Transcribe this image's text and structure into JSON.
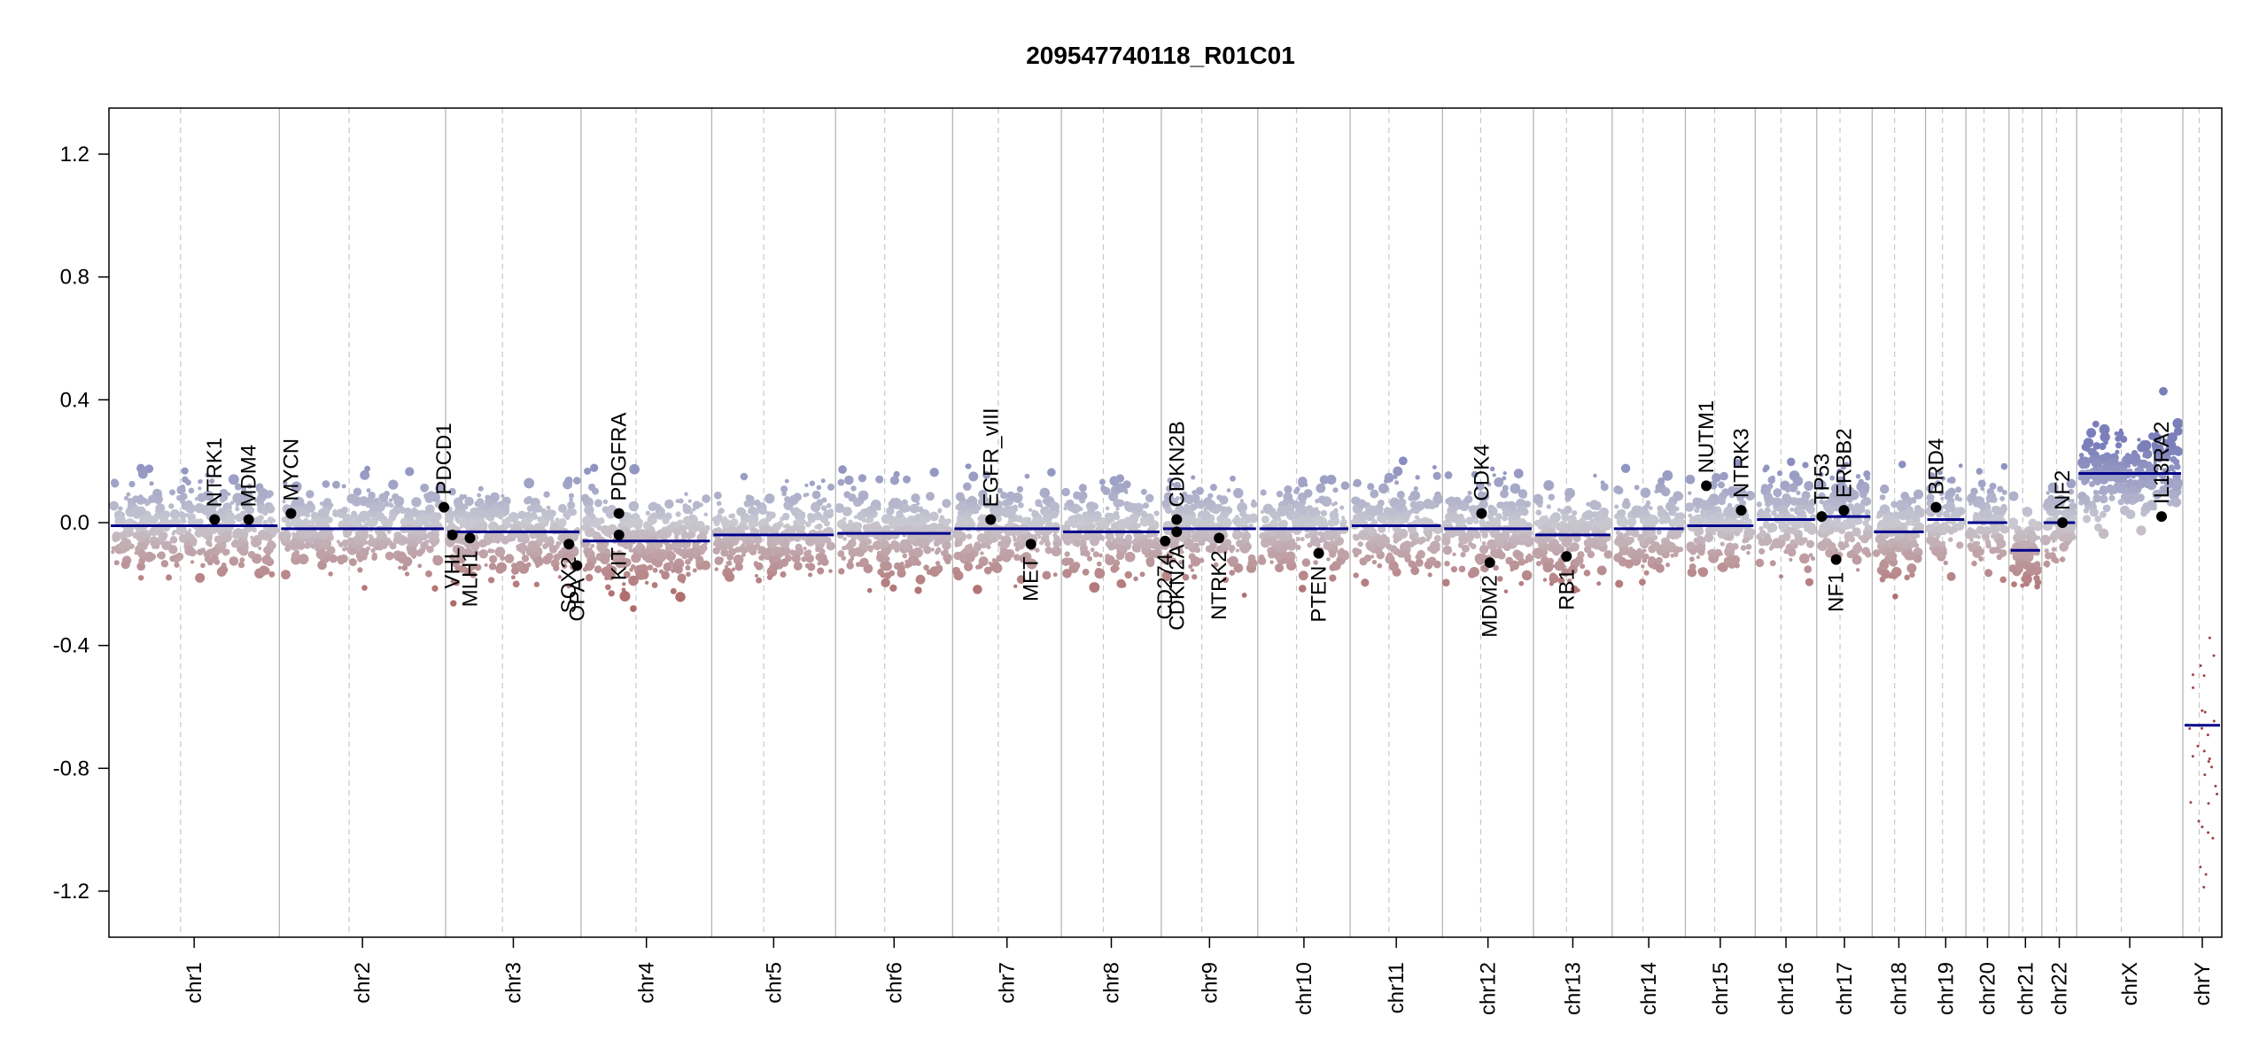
{
  "chart_data": {
    "type": "scatter",
    "title": "209547740118_R01C01",
    "xlabel": "",
    "ylabel": "",
    "ylim": [
      -1.35,
      1.35
    ],
    "y_ticks": [
      -1.2,
      -0.8,
      -0.4,
      0.0,
      0.4,
      0.8,
      1.2
    ],
    "y_tick_labels": [
      "-1.2",
      "-0.8",
      "-0.4",
      "0.0",
      "0.4",
      "0.8",
      "1.2"
    ],
    "colors": {
      "gain": "#7a7fba",
      "neutral": "#c9c9d2",
      "loss": "#b06a6a",
      "segment": "#00008b",
      "gene_dot": "#000000",
      "boundary": "#b0b0b0"
    },
    "chromosomes": [
      {
        "name": "chr1",
        "len": 249,
        "seg": -0.01
      },
      {
        "name": "chr2",
        "len": 243,
        "seg": -0.02
      },
      {
        "name": "chr3",
        "len": 198,
        "seg": -0.03
      },
      {
        "name": "chr4",
        "len": 191,
        "seg": -0.06
      },
      {
        "name": "chr5",
        "len": 181,
        "seg": -0.04
      },
      {
        "name": "chr6",
        "len": 171,
        "seg": -0.035
      },
      {
        "name": "chr7",
        "len": 159,
        "seg": -0.02
      },
      {
        "name": "chr8",
        "len": 146,
        "seg": -0.03
      },
      {
        "name": "chr9",
        "len": 141,
        "seg": -0.02
      },
      {
        "name": "chr10",
        "len": 135,
        "seg": -0.02
      },
      {
        "name": "chr11",
        "len": 135,
        "seg": -0.01
      },
      {
        "name": "chr12",
        "len": 133,
        "seg": -0.02
      },
      {
        "name": "chr13",
        "len": 115,
        "seg": -0.04
      },
      {
        "name": "chr14",
        "len": 107,
        "seg": -0.02
      },
      {
        "name": "chr15",
        "len": 102,
        "seg": -0.01
      },
      {
        "name": "chr16",
        "len": 90,
        "seg": 0.01
      },
      {
        "name": "chr17",
        "len": 81,
        "seg": 0.02
      },
      {
        "name": "chr18",
        "len": 78,
        "seg": -0.03
      },
      {
        "name": "chr19",
        "len": 59,
        "seg": 0.01
      },
      {
        "name": "chr20",
        "len": 63,
        "seg": 0.0
      },
      {
        "name": "chr21",
        "len": 48,
        "seg": -0.09
      },
      {
        "name": "chr22",
        "len": 51,
        "seg": 0.0
      },
      {
        "name": "chrX",
        "len": 155,
        "seg": 0.16
      },
      {
        "name": "chrY",
        "len": 57,
        "seg": -0.66
      }
    ],
    "genes": [
      {
        "name": "NTRK1",
        "chr": "chr1",
        "pos": 0.62,
        "y": 0.01,
        "label_side": "up"
      },
      {
        "name": "MDM4",
        "chr": "chr1",
        "pos": 0.82,
        "y": 0.01,
        "label_side": "up"
      },
      {
        "name": "MYCN",
        "chr": "chr2",
        "pos": 0.07,
        "y": 0.03,
        "label_side": "up"
      },
      {
        "name": "PDCD1",
        "chr": "chr2",
        "pos": 0.99,
        "y": 0.05,
        "label_side": "up"
      },
      {
        "name": "VHL",
        "chr": "chr3",
        "pos": 0.05,
        "y": -0.04,
        "label_side": "down"
      },
      {
        "name": "MLH1",
        "chr": "chr3",
        "pos": 0.18,
        "y": -0.05,
        "label_side": "down"
      },
      {
        "name": "SOX2",
        "chr": "chr3",
        "pos": 0.91,
        "y": -0.07,
        "label_side": "down"
      },
      {
        "name": "OPA",
        "chr": "chr3",
        "pos": 0.97,
        "y": -0.14,
        "label_side": "down"
      },
      {
        "name": "PDGFRA",
        "chr": "chr4",
        "pos": 0.29,
        "y": 0.03,
        "label_side": "up"
      },
      {
        "name": "KIT",
        "chr": "chr4",
        "pos": 0.29,
        "y": -0.04,
        "label_side": "down"
      },
      {
        "name": "EGFR_vIII",
        "chr": "chr7",
        "pos": 0.35,
        "y": 0.01,
        "label_side": "up"
      },
      {
        "name": "MET",
        "chr": "chr7",
        "pos": 0.72,
        "y": -0.07,
        "label_side": "down"
      },
      {
        "name": "CD274",
        "chr": "chr9",
        "pos": 0.04,
        "y": -0.06,
        "label_side": "down"
      },
      {
        "name": "CDKN2A",
        "chr": "chr9",
        "pos": 0.16,
        "y": -0.03,
        "label_side": "down"
      },
      {
        "name": "CDKN2B",
        "chr": "chr9",
        "pos": 0.16,
        "y": 0.01,
        "label_side": "up"
      },
      {
        "name": "NTRK2",
        "chr": "chr9",
        "pos": 0.6,
        "y": -0.05,
        "label_side": "down"
      },
      {
        "name": "PTEN",
        "chr": "chr10",
        "pos": 0.66,
        "y": -0.1,
        "label_side": "down"
      },
      {
        "name": "CDK4",
        "chr": "chr12",
        "pos": 0.43,
        "y": 0.03,
        "label_side": "up"
      },
      {
        "name": "MDM2",
        "chr": "chr12",
        "pos": 0.52,
        "y": -0.13,
        "label_side": "down"
      },
      {
        "name": "RB1",
        "chr": "chr13",
        "pos": 0.42,
        "y": -0.11,
        "label_side": "down"
      },
      {
        "name": "NUTM1",
        "chr": "chr15",
        "pos": 0.3,
        "y": 0.12,
        "label_side": "up"
      },
      {
        "name": "NTRK3",
        "chr": "chr15",
        "pos": 0.8,
        "y": 0.04,
        "label_side": "up"
      },
      {
        "name": "TP53",
        "chr": "chr17",
        "pos": 0.09,
        "y": 0.02,
        "label_side": "up"
      },
      {
        "name": "NF1",
        "chr": "chr17",
        "pos": 0.35,
        "y": -0.12,
        "label_side": "down"
      },
      {
        "name": "ERBB2",
        "chr": "chr17",
        "pos": 0.49,
        "y": 0.04,
        "label_side": "up"
      },
      {
        "name": "BRD4",
        "chr": "chr19",
        "pos": 0.26,
        "y": 0.05,
        "label_side": "up"
      },
      {
        "name": "NF2",
        "chr": "chr22",
        "pos": 0.59,
        "y": 0.0,
        "label_side": "up"
      },
      {
        "name": "IL13RA2",
        "chr": "chrX",
        "pos": 0.8,
        "y": 0.02,
        "label_side": "up"
      }
    ]
  }
}
